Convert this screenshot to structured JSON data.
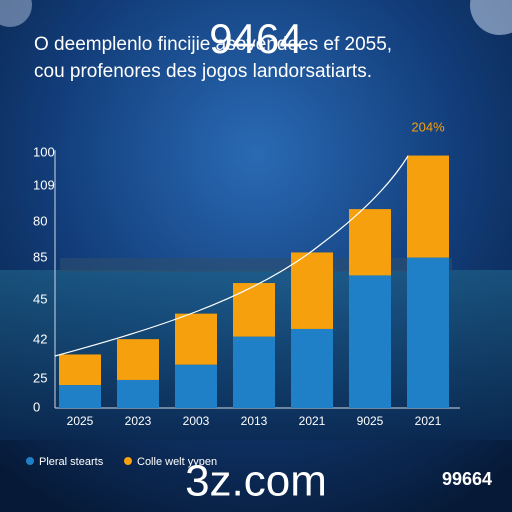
{
  "chart_data": {
    "type": "stacked_bar",
    "title": "O deemplenlo fincijie asovendoes ef 2055,",
    "subtitle": "cou profenores des jogos landorsatiarts.",
    "overlay_text": "9464",
    "annotation": "204%",
    "y_axis_labels": [
      "100",
      "109",
      "80",
      "85",
      "45",
      "42",
      "25",
      "0"
    ],
    "categories": [
      "2025",
      "2023",
      "2003",
      "2013",
      "2021",
      "9025",
      "2021"
    ],
    "series": [
      {
        "name": "Pleral stearts",
        "color": "#1f7fc7",
        "values": [
          9,
          11,
          17,
          28,
          31,
          52,
          59
        ]
      },
      {
        "name": "Colle welt yypen",
        "color": "#f5a00c",
        "values": [
          12,
          16,
          20,
          21,
          30,
          26,
          40
        ]
      }
    ],
    "ylim": [
      0,
      100
    ],
    "watermark": "3z.com",
    "corner_text": "99664"
  }
}
